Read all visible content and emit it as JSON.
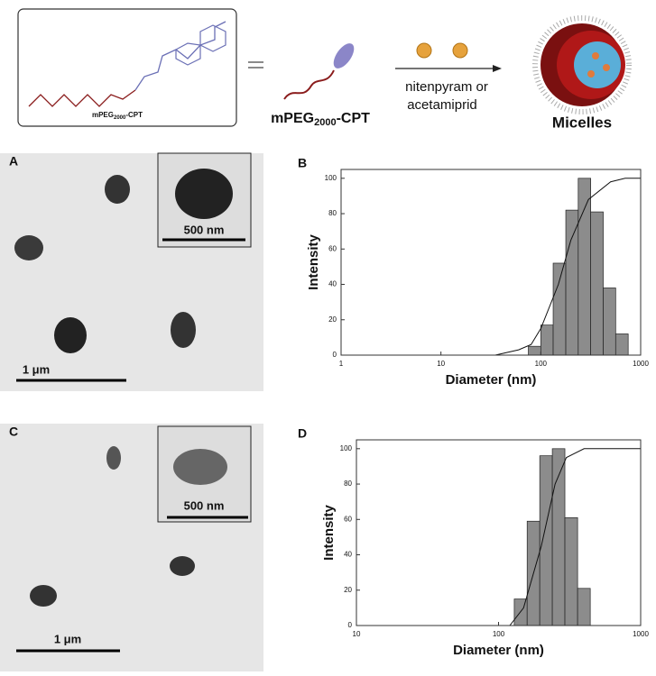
{
  "scheme": {
    "structure_label": [
      "mPEG",
      "2000",
      "-CPT"
    ],
    "polymer_label": [
      "mPEG",
      "2000",
      "-CPT"
    ],
    "reagent": [
      "nitenpyram or",
      "acetamiprid"
    ],
    "product": "Micelles"
  },
  "images": [
    {
      "panel": "A",
      "scale_bar": "1 μm",
      "inset_scale_bar": "500 nm"
    },
    {
      "panel": "C",
      "scale_bar": "1 μm",
      "inset_scale_bar": "500 nm"
    }
  ],
  "chart_data": [
    {
      "type": "histogram",
      "panel": "B",
      "xlabel": "Diameter (nm)",
      "ylabel": "Intensity",
      "xscale": "log",
      "xlim": [
        1,
        1000
      ],
      "xticks": [
        1,
        10,
        100,
        1000
      ],
      "ylim": [
        0,
        105
      ],
      "yticks": [
        0,
        20,
        40,
        60,
        80,
        100
      ],
      "bins": [
        75,
        100,
        133,
        178,
        237,
        316,
        422,
        562,
        750
      ],
      "values": [
        5,
        17,
        52,
        82,
        100,
        81,
        38,
        12
      ],
      "color": "#8c8c8c",
      "cumulative": {
        "x": [
          35,
          60,
          80,
          100,
          150,
          200,
          300,
          500,
          700,
          1000
        ],
        "values": [
          0,
          3,
          6,
          15,
          40,
          65,
          88,
          98,
          100,
          100
        ],
        "color": "#111111"
      }
    },
    {
      "type": "histogram",
      "panel": "D",
      "xlabel": "Diameter (nm)",
      "ylabel": "Intensity",
      "xscale": "log",
      "xlim": [
        10,
        1000
      ],
      "xticks": [
        10,
        100,
        1000
      ],
      "ylim": [
        0,
        105
      ],
      "yticks": [
        0,
        20,
        40,
        60,
        80,
        100
      ],
      "bins": [
        129,
        159,
        195,
        239,
        293,
        360,
        442
      ],
      "values": [
        15,
        59,
        96,
        100,
        61,
        21
      ],
      "color": "#8c8c8c",
      "cumulative": {
        "x": [
          120,
          150,
          200,
          250,
          300,
          400,
          1000
        ],
        "values": [
          0,
          10,
          45,
          80,
          95,
          100,
          100
        ],
        "color": "#111111"
      }
    }
  ]
}
